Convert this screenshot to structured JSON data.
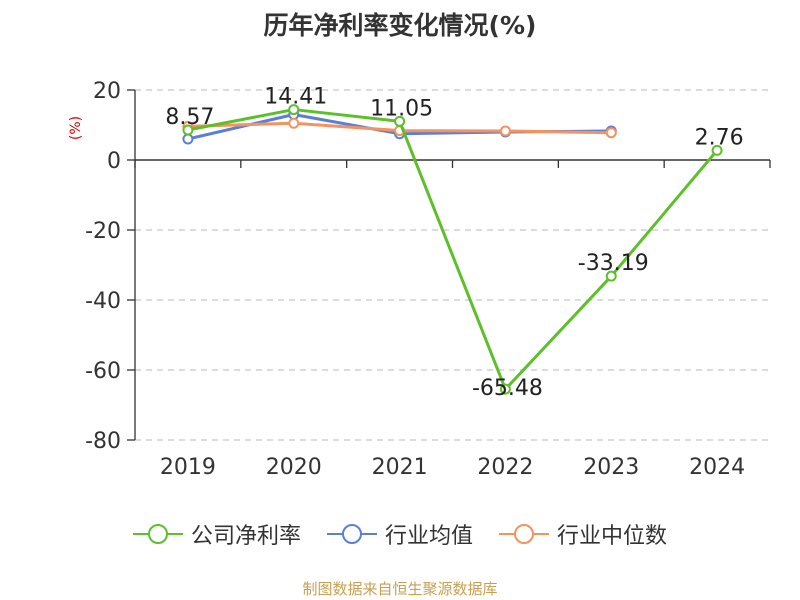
{
  "title": "历年净利率变化情况(%)",
  "source": "制图数据来自恒生聚源数据库",
  "chart_data": {
    "type": "line",
    "categories": [
      "2019",
      "2020",
      "2021",
      "2022",
      "2023",
      "2024"
    ],
    "y_unit": "(%)",
    "ylim": [
      -80,
      20
    ],
    "yticks": [
      20,
      0,
      -20,
      -40,
      -60,
      -80
    ],
    "ytick_labels": [
      "20",
      "0",
      "-20",
      "-40",
      "-60",
      "-80"
    ],
    "grid": true,
    "legend_position": "bottom",
    "series": [
      {
        "name": "公司净利率",
        "color": "#5cc02a",
        "values": [
          8.57,
          14.41,
          11.05,
          -65.48,
          -33.19,
          2.76
        ],
        "labels": [
          "8.57",
          "14.41",
          "11.05",
          "-65.48",
          "-33.19",
          "2.76"
        ]
      },
      {
        "name": "行业均值",
        "color": "#5b7fd8",
        "values": [
          6.0,
          13.0,
          7.5,
          8.0,
          8.3,
          null
        ],
        "labels": []
      },
      {
        "name": "行业中位数",
        "color": "#f5925e",
        "values": [
          9.6,
          10.5,
          8.4,
          8.3,
          7.8,
          null
        ],
        "labels": []
      }
    ]
  }
}
